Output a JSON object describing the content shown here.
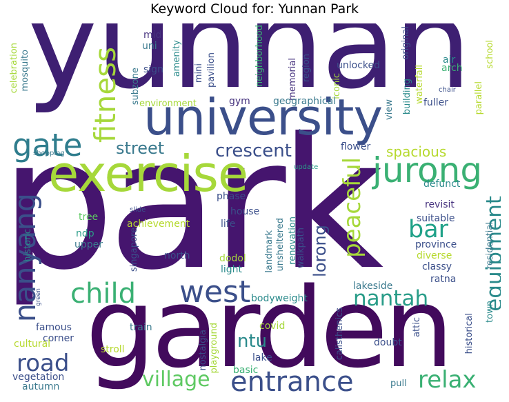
{
  "title": "Keyword Cloud for: Yunnan Park",
  "words": [
    {
      "text": "yunnan",
      "color": "#3e1f72"
    },
    {
      "text": "park",
      "color": "#45156e"
    },
    {
      "text": "garden",
      "color": "#420a5c"
    },
    {
      "text": "university",
      "color": "#3b4f8a"
    },
    {
      "text": "exercise",
      "color": "#a6d83a"
    },
    {
      "text": "jurong",
      "color": "#3ab073"
    },
    {
      "text": "gate",
      "color": "#2f7d8d"
    },
    {
      "text": "fitness",
      "color": "#a6d83a"
    },
    {
      "text": "crescent",
      "color": "#3b4f8a"
    },
    {
      "text": "street",
      "color": "#3b7a8e"
    },
    {
      "text": "nanyang",
      "color": "#3b4f8a"
    },
    {
      "text": "west",
      "color": "#3b4f8a"
    },
    {
      "text": "child",
      "color": "#3ab073"
    },
    {
      "text": "peaceful",
      "color": "#a6d83a"
    },
    {
      "text": "nantah",
      "color": "#2a9d89"
    },
    {
      "text": "equipment",
      "color": "#2a8a8b"
    },
    {
      "text": "bar",
      "color": "#1fa188"
    },
    {
      "text": "lorong",
      "color": "#3b4f8a"
    },
    {
      "text": "road",
      "color": "#3b4f8a"
    },
    {
      "text": "village",
      "color": "#5ec962"
    },
    {
      "text": "entrance",
      "color": "#3b4f8a"
    },
    {
      "text": "relax",
      "color": "#3ab073"
    },
    {
      "text": "ntu",
      "color": "#2a8a8b"
    },
    {
      "text": "spacious",
      "color": "#b6d92e"
    },
    {
      "text": "mid",
      "color": "#46327e"
    },
    {
      "text": "uni",
      "color": "#3b7a8e"
    },
    {
      "text": "sign",
      "color": "#3b4f8a"
    },
    {
      "text": "mosquito",
      "color": "#3b7a8e"
    },
    {
      "text": "celebration",
      "color": "#a6d83a"
    },
    {
      "text": "amenity",
      "color": "#2a8a8b"
    },
    {
      "text": "mini",
      "color": "#3b4f8a"
    },
    {
      "text": "pavilion",
      "color": "#3b4f8a"
    },
    {
      "text": "subzone",
      "color": "#3b7a8e"
    },
    {
      "text": "neighborhood",
      "color": "#3ab073"
    },
    {
      "text": "memorial",
      "color": "#46327e"
    },
    {
      "text": "region",
      "color": "#3b4f8a"
    },
    {
      "text": "unlocked",
      "color": "#3b4f8a"
    },
    {
      "text": "iconic",
      "color": "#a6d83a"
    },
    {
      "text": "original",
      "color": "#3b4f8a"
    },
    {
      "text": "building",
      "color": "#2a8a8b"
    },
    {
      "text": "waterfall",
      "color": "#b6d92e"
    },
    {
      "text": "air",
      "color": "#2a8a8b"
    },
    {
      "text": "arch",
      "color": "#3ab073"
    },
    {
      "text": "school",
      "color": "#b6d92e"
    },
    {
      "text": "parallel",
      "color": "#b6d92e"
    },
    {
      "text": "chair",
      "color": "#3b4f8a"
    },
    {
      "text": "environment",
      "color": "#a6d83a"
    },
    {
      "text": "gym",
      "color": "#46327e"
    },
    {
      "text": "geographical",
      "color": "#3b7a8e"
    },
    {
      "text": "fuller",
      "color": "#3b4f8a"
    },
    {
      "text": "view",
      "color": "#3b7a8e"
    },
    {
      "text": "flower",
      "color": "#3b4f8a"
    },
    {
      "text": "shopping",
      "color": "#3b7a8e"
    },
    {
      "text": "update",
      "color": "#2a9d89"
    },
    {
      "text": "defunct",
      "color": "#2a8a8b"
    },
    {
      "text": "revisit",
      "color": "#46327e"
    },
    {
      "text": "suitable",
      "color": "#3b4f8a"
    },
    {
      "text": "residential",
      "color": "#3b7a8e"
    },
    {
      "text": "phase",
      "color": "#3b4f8a"
    },
    {
      "text": "house",
      "color": "#3b4f8a"
    },
    {
      "text": "slide",
      "color": "#3b4f8a"
    },
    {
      "text": "tree",
      "color": "#5ec962"
    },
    {
      "text": "achievement",
      "color": "#b6d92e"
    },
    {
      "text": "life",
      "color": "#3b4f8a"
    },
    {
      "text": "ndp",
      "color": "#2a9d89"
    },
    {
      "text": "upper",
      "color": "#3b7a8e"
    },
    {
      "text": "singapore",
      "color": "#3b4f8a"
    },
    {
      "text": "north",
      "color": "#3b4f8a"
    },
    {
      "text": "landmark",
      "color": "#3b7a8e"
    },
    {
      "text": "unsheltered",
      "color": "#3b7a8e"
    },
    {
      "text": "renovation",
      "color": "#2a8a8b"
    },
    {
      "text": "walkpath",
      "color": "#3b4f8a"
    },
    {
      "text": "province",
      "color": "#3b4f8a"
    },
    {
      "text": "diverse",
      "color": "#b6d92e"
    },
    {
      "text": "classy",
      "color": "#3b4f8a"
    },
    {
      "text": "ratna",
      "color": "#3b4f8a"
    },
    {
      "text": "historic",
      "color": "#2a8a8b"
    },
    {
      "text": "dodol",
      "color": "#a6d83a"
    },
    {
      "text": "light",
      "color": "#2a8a8b"
    },
    {
      "text": "green",
      "color": "#3b4f8a"
    },
    {
      "text": "lakeside",
      "color": "#3b7a8e"
    },
    {
      "text": "bodyweight",
      "color": "#2a8a8b"
    },
    {
      "text": "town",
      "color": "#2a8a8b"
    },
    {
      "text": "famous",
      "color": "#3b4f8a"
    },
    {
      "text": "corner",
      "color": "#3b4f8a"
    },
    {
      "text": "train",
      "color": "#3b7a8e"
    },
    {
      "text": "covid",
      "color": "#a6d83a"
    },
    {
      "text": "calisthenics",
      "color": "#3b4f8a"
    },
    {
      "text": "attic",
      "color": "#3b4f8a"
    },
    {
      "text": "doubt",
      "color": "#3b4f8a"
    },
    {
      "text": "historical",
      "color": "#3b4f8a"
    },
    {
      "text": "cultural",
      "color": "#b6d92e"
    },
    {
      "text": "stroll",
      "color": "#b6d92e"
    },
    {
      "text": "nostalgia",
      "color": "#3b4f8a"
    },
    {
      "text": "playground",
      "color": "#a6d83a"
    },
    {
      "text": "lake",
      "color": "#3b4f8a"
    },
    {
      "text": "vegetation",
      "color": "#3b4f8a"
    },
    {
      "text": "basic",
      "color": "#3ab073"
    },
    {
      "text": "autumn",
      "color": "#3b7a8e"
    },
    {
      "text": "pull",
      "color": "#3b7a8e"
    }
  ]
}
